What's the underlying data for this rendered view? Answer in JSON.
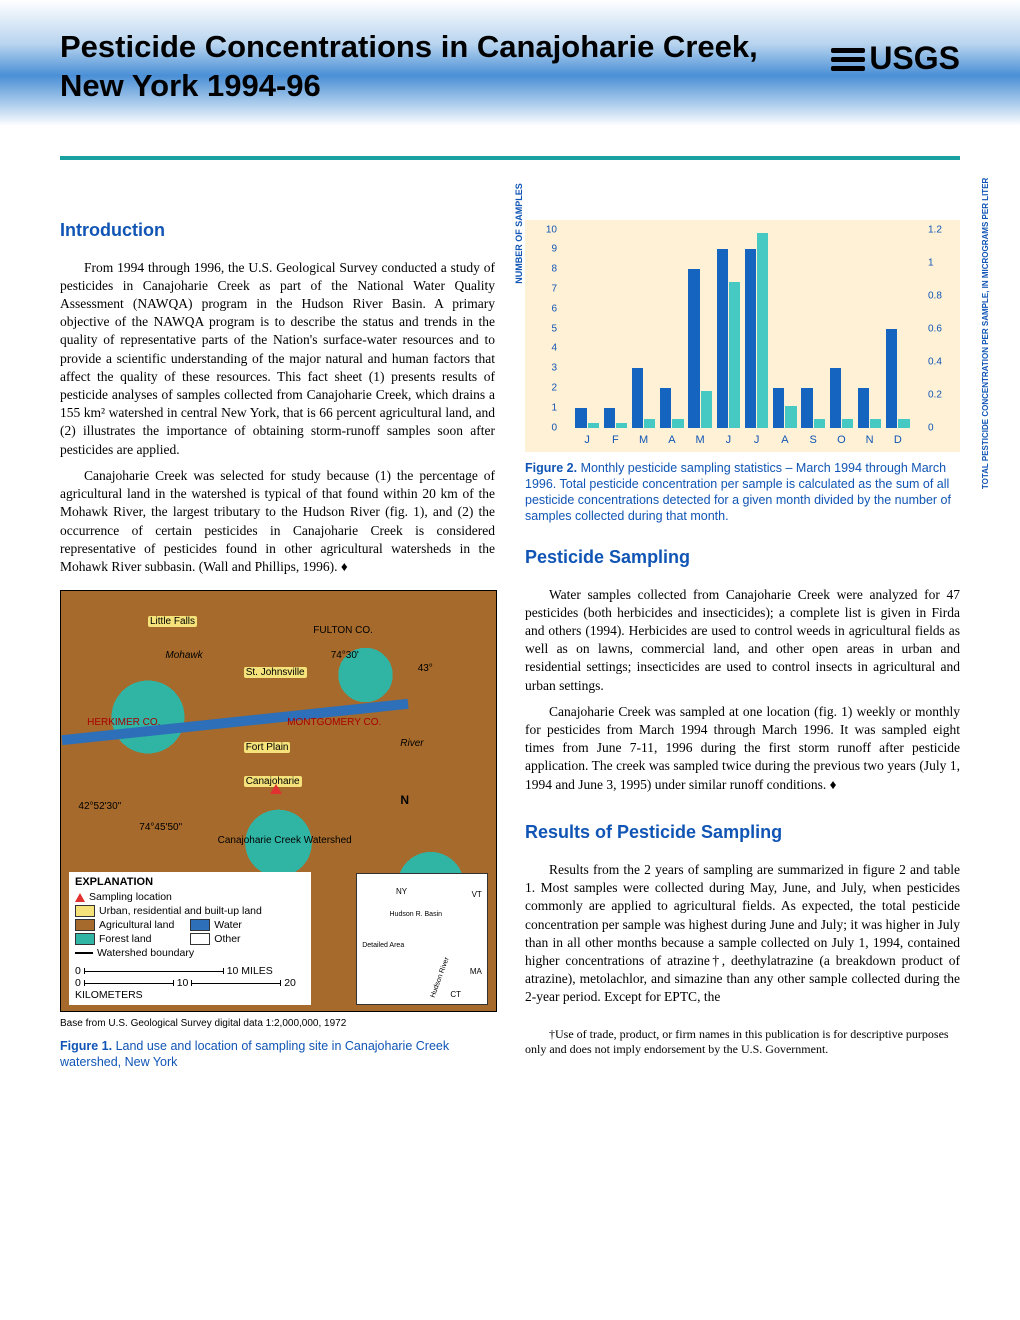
{
  "header": {
    "title": "Pesticide Concentrations in Canajoharie Creek, New York 1994-96",
    "logo_text": "USGS"
  },
  "sections": {
    "intro_title": "Introduction",
    "intro_p1": "From 1994 through 1996, the U.S. Geological Survey conducted a study of pesticides in Canajoharie Creek as part of the National Water Quality Assessment (NAWQA) program in the Hudson River Basin.  A primary objective of the NAWQA program is to describe the status and trends in the quality of representative parts of the Nation's surface-water resources and to provide a scientific understanding of the major natural and human factors that affect the quality of these resources.  This fact sheet (1) presents results of pesticide analyses of samples collected from Canajoharie Creek, which drains a 155 km² watershed in central New York, that is 66 percent agricultural land, and (2) illustrates the importance of obtaining storm-runoff samples soon after pesticides are applied.",
    "intro_p2": "Canajoharie Creek was selected for study because (1) the percentage of agricultural land in the watershed is typical of that found within 20 km of the Mohawk River, the largest tributary to the Hudson River (fig. 1), and (2) the occurrence of certain pesticides in Canajoharie Creek is considered representative of pesticides found in other agricultural watersheds in the Mohawk River subbasin. (Wall and Phillips, 1996). ♦",
    "sampling_title": "Pesticide Sampling",
    "sampling_p1": "Water samples collected from Canajoharie Creek were analyzed for 47 pesticides (both herbicides and insecticides); a complete list is given in Firda and others (1994). Herbicides are used to control weeds in agricultural fields as well as on lawns, commercial land, and other open areas in urban and residential settings; insecticides are used to control insects in agricultural and urban settings.",
    "sampling_p2": "Canajoharie Creek was sampled at one location (fig. 1) weekly or monthly for pesticides from March 1994 through March 1996.  It was sampled eight times from June 7-11, 1996 during the first storm runoff after pesticide application.  The creek was sampled twice during the previous two years (July 1, 1994 and June 3, 1995) under similar runoff conditions. ♦",
    "results_title": "Results of Pesticide Sampling",
    "results_p1": "Results from the 2 years of sampling are summarized in figure 2 and table 1.  Most samples were collected during May, June, and July, when pesticides commonly are applied to agricultural fields.  As expected, the total pesticide concentration per sample was highest during June and July; it was higher in July than in all other months because a sample collected on July 1, 1994, contained higher concentrations of atrazine†, deethylatrazine (a breakdown product of atrazine), metolachlor, and simazine than any other sample collected during the 2-year period.  Except for EPTC, the",
    "footnote": "†Use of trade, product, or firm names in this publication is for descriptive purposes only and does not imply endorsement by the U.S. Government."
  },
  "figure1": {
    "caption_bold": "Figure 1.",
    "caption_text": " Land use and location of sampling site in Canajoharie Creek watershed, New York",
    "labels": {
      "little_falls": "Little Falls",
      "fulton_co": "FULTON CO.",
      "st_johnsville": "St. Johnsville",
      "herkimer_co": "HERKIMER CO.",
      "montgomery_co": "MONTGOMERY CO.",
      "fort_plain": "Fort Plain",
      "canajoharie": "Canajoharie",
      "mohawk": "Mohawk",
      "river": "River",
      "watershed_label": "Canajoharie Creek Watershed",
      "lon1": "74°30'",
      "lon2": "74°45'50\"",
      "lat1": "42°52'30\"",
      "lat2": "43°",
      "north": "N"
    },
    "explanation": {
      "title": "EXPLANATION",
      "sampling": "Sampling location",
      "urban": "Urban, residential and built-up land",
      "agricultural": "Agricultural land",
      "forest": "Forest land",
      "water": "Water",
      "other": "Other",
      "boundary": "Watershed boundary"
    },
    "legend_colors": {
      "urban": "#f5e27a",
      "agricultural": "#a56a2c",
      "forest": "#30b5a5",
      "water": "#2d6fb8",
      "other": "#ffffff"
    },
    "scale": {
      "miles_0": "0",
      "miles_10": "10",
      "miles_label": "MILES",
      "km_0": "0",
      "km_10": "10",
      "km_20": "20",
      "km_label": "KILOMETERS"
    },
    "base_note": "Base from U.S. Geological Survey digital data 1:2,000,000, 1972",
    "inset": {
      "ny": "NY",
      "vt": "VT",
      "ma": "MA",
      "ct": "CT",
      "hudson_basin": "Hudson R. Basin",
      "hudson_river": "Hudson River",
      "detailed_area": "Detailed Area"
    }
  },
  "figure2": {
    "caption_bold": "Figure 2.",
    "caption_text": "  Monthly pesticide sampling statistics – March 1994 through March 1996.  Total pesticide concentration per sample is calculated as the sum of all pesticide concentrations detected for a given month divided by the number of samples collected during that month.",
    "chart": {
      "type": "grouped-bar",
      "background_color": "#fff1d6",
      "months": [
        "J",
        "F",
        "M",
        "A",
        "M",
        "J",
        "J",
        "A",
        "S",
        "O",
        "N",
        "D"
      ],
      "y_left": {
        "label": "NUMBER OF SAMPLES",
        "min": 0,
        "max": 10,
        "ticks": [
          "0",
          "1",
          "2",
          "3",
          "4",
          "5",
          "6",
          "7",
          "8",
          "9",
          "10"
        ],
        "color": "#1055b5"
      },
      "y_right": {
        "label": "TOTAL PESTICIDE CONCENTRATION PER SAMPLE, IN MICROGRAMS PER LITER",
        "min": 0,
        "max": 1.2,
        "ticks": [
          "0",
          "0.2",
          "0.4",
          "0.6",
          "0.8",
          "1",
          "1.2"
        ],
        "color": "#1055b5"
      },
      "series": {
        "samples": {
          "color": "#1565c0",
          "values": [
            1,
            1,
            3,
            2,
            8,
            9,
            9,
            2,
            2,
            3,
            2,
            5
          ]
        },
        "concentration": {
          "color": "#45c9c2",
          "values": [
            0.03,
            0.03,
            0.05,
            0.05,
            0.22,
            0.88,
            1.18,
            0.13,
            0.05,
            0.05,
            0.05,
            0.05
          ]
        }
      }
    }
  },
  "colors": {
    "section_heading": "#1055b5",
    "teal_rule": "#19a0a0",
    "header_gradient_mid": "#4a8fd6"
  }
}
